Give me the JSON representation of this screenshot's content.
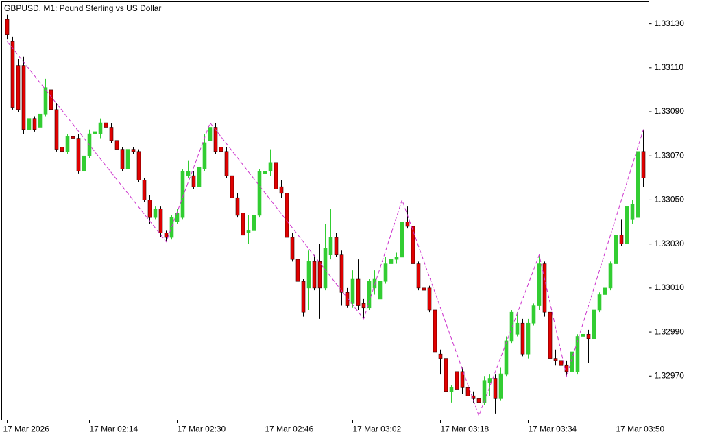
{
  "chart_data": {
    "type": "candlestick",
    "title": "GBPUSD, M1:  Pound Sterling vs US Dollar",
    "up_color": "#32cd32",
    "down_color": "#e00000",
    "xlim": [
      -1,
      117
    ],
    "xticks": [
      {
        "value": 0,
        "label": "17 Mar 2026"
      },
      {
        "value": 15,
        "label": "17 Mar 02:14"
      },
      {
        "value": 31,
        "label": "17 Mar 02:30"
      },
      {
        "value": 47,
        "label": "17 Mar 02:46"
      },
      {
        "value": 63,
        "label": "17 Mar 03:02"
      },
      {
        "value": 79,
        "label": "17 Mar 03:18"
      },
      {
        "value": 95,
        "label": "17 Mar 03:34"
      },
      {
        "value": 111,
        "label": "17 Mar 03:50"
      }
    ],
    "ylim": [
      1.3295,
      1.3314
    ],
    "yticks": [
      {
        "value": 1.3297,
        "label": "1.32970"
      },
      {
        "value": 1.3299,
        "label": "1.32990"
      },
      {
        "value": 1.3301,
        "label": "1.33010"
      },
      {
        "value": 1.3303,
        "label": "1.33030"
      },
      {
        "value": 1.3305,
        "label": "1.33050"
      },
      {
        "value": 1.3307,
        "label": "1.33070"
      },
      {
        "value": 1.3309,
        "label": "1.33090"
      },
      {
        "value": 1.3311,
        "label": "1.33110"
      },
      {
        "value": 1.3313,
        "label": "1.33130"
      }
    ],
    "open": [
      1.33132,
      1.33122,
      1.33111,
      1.33111,
      1.33082,
      1.33087,
      1.33083,
      1.33089,
      1.331,
      1.33091,
      1.33074,
      1.33072,
      1.33079,
      1.33078,
      1.33063,
      1.3307,
      1.3308,
      1.3308,
      1.33085,
      1.33083,
      1.33077,
      1.33073,
      1.33064,
      1.33073,
      1.33072,
      1.33059,
      1.3305,
      1.33042,
      1.33046,
      1.33035,
      1.33033,
      1.3304,
      1.33042,
      1.33061,
      1.33061,
      1.33056,
      1.33064,
      1.33077,
      1.33083,
      1.33074,
      1.33072,
      1.33061,
      1.33051,
      1.33044,
      1.33035,
      1.33036,
      1.33043,
      1.33062,
      1.33063,
      1.33067,
      1.33056,
      1.33053,
      1.33033,
      1.33023,
      1.33013,
      1.3301,
      1.33022,
      1.33022,
      1.3301,
      1.33025,
      1.33033,
      1.33025,
      1.33008,
      1.33003,
      1.33014,
      1.33003,
      1.33001,
      1.3301,
      1.33005,
      1.33013,
      1.33021,
      1.33023,
      1.33024,
      1.3304,
      1.33038,
      1.33021,
      1.3301,
      1.3301,
      1.33,
      1.3298,
      1.32978,
      1.32963,
      1.32972,
      1.32972,
      1.32965,
      1.32961,
      1.3296,
      1.32958,
      1.32967,
      1.32969,
      1.3296,
      1.32971,
      1.32986,
      1.32989,
      1.32994,
      1.3298,
      1.32994,
      1.33002,
      1.33021,
      1.32999,
      1.32978,
      1.32977,
      1.32975,
      1.32972,
      1.32972,
      1.32988,
      1.32989,
      1.32987,
      1.33,
      1.33007,
      1.3301,
      1.33021,
      1.33034,
      1.3303,
      1.33041,
      1.33042,
      1.33072
    ],
    "high": [
      1.33134,
      1.33124,
      1.33114,
      1.33115,
      1.33089,
      1.33088,
      1.33091,
      1.33105,
      1.33103,
      1.33094,
      1.33077,
      1.3308,
      1.33083,
      1.3308,
      1.33072,
      1.33082,
      1.33084,
      1.33087,
      1.33093,
      1.33085,
      1.33078,
      1.33074,
      1.33075,
      1.33074,
      1.33073,
      1.3306,
      1.33052,
      1.33047,
      1.33047,
      1.33036,
      1.33043,
      1.33046,
      1.33064,
      1.33068,
      1.33063,
      1.33067,
      1.3308,
      1.33085,
      1.33085,
      1.33076,
      1.33074,
      1.33063,
      1.33053,
      1.33046,
      1.33043,
      1.33045,
      1.33064,
      1.33066,
      1.33073,
      1.33068,
      1.33059,
      1.33054,
      1.33035,
      1.33025,
      1.33014,
      1.33027,
      1.33025,
      1.3303,
      1.33039,
      1.33046,
      1.33035,
      1.33027,
      1.3301,
      1.33018,
      1.33023,
      1.33005,
      1.33014,
      1.33018,
      1.33016,
      1.33024,
      1.33027,
      1.33026,
      1.3305,
      1.33047,
      1.33041,
      1.33022,
      1.33013,
      1.33011,
      1.33002,
      1.32982,
      1.3298,
      1.32966,
      1.32978,
      1.32974,
      1.32968,
      1.32963,
      1.32961,
      1.3297,
      1.32971,
      1.32971,
      1.32974,
      1.32988,
      1.33,
      1.32999,
      1.32996,
      1.32996,
      1.33003,
      1.33025,
      1.33022,
      1.33,
      1.32982,
      1.32983,
      1.32977,
      1.32982,
      1.32989,
      1.3299,
      1.32991,
      1.33002,
      1.33008,
      1.33011,
      1.33022,
      1.33036,
      1.33041,
      1.33048,
      1.3305,
      1.33074,
      1.33082
    ],
    "low": [
      1.33123,
      1.33091,
      1.3309,
      1.3308,
      1.3308,
      1.33081,
      1.33082,
      1.33088,
      1.33089,
      1.33072,
      1.33071,
      1.33071,
      1.33072,
      1.33062,
      1.33062,
      1.33069,
      1.33078,
      1.33078,
      1.33082,
      1.33076,
      1.33072,
      1.33063,
      1.33063,
      1.33071,
      1.33058,
      1.33049,
      1.33039,
      1.33041,
      1.33033,
      1.33031,
      1.33032,
      1.33039,
      1.33041,
      1.3306,
      1.33055,
      1.33055,
      1.33063,
      1.33075,
      1.33071,
      1.3307,
      1.3306,
      1.3305,
      1.33042,
      1.33025,
      1.3303,
      1.33035,
      1.33042,
      1.33061,
      1.33061,
      1.33053,
      1.33051,
      1.33032,
      1.33022,
      1.33008,
      1.32997,
      1.33,
      1.33009,
      1.32996,
      1.33009,
      1.33023,
      1.33024,
      1.33002,
      1.33001,
      1.33001,
      1.33,
      1.32996,
      1.33,
      1.33007,
      1.33003,
      1.33012,
      1.33019,
      1.33021,
      1.33023,
      1.33037,
      1.3302,
      1.33009,
      1.33007,
      1.32999,
      1.32978,
      1.32971,
      1.32958,
      1.32958,
      1.32963,
      1.32962,
      1.3296,
      1.32958,
      1.32952,
      1.32957,
      1.32961,
      1.32953,
      1.32959,
      1.3297,
      1.32985,
      1.32988,
      1.32979,
      1.32978,
      1.32993,
      1.33,
      1.32997,
      1.3297,
      1.32975,
      1.32972,
      1.3297,
      1.32971,
      1.32971,
      1.32987,
      1.32976,
      1.32986,
      1.32999,
      1.33006,
      1.33009,
      1.3302,
      1.33029,
      1.33028,
      1.33039,
      1.3304,
      1.33056
    ],
    "close": [
      1.33125,
      1.33092,
      1.33091,
      1.33082,
      1.33087,
      1.33082,
      1.33089,
      1.33101,
      1.33091,
      1.33073,
      1.33072,
      1.33079,
      1.33078,
      1.33063,
      1.3307,
      1.3308,
      1.33081,
      1.33085,
      1.33083,
      1.33077,
      1.33073,
      1.33064,
      1.33073,
      1.33072,
      1.33059,
      1.3305,
      1.33042,
      1.33046,
      1.33035,
      1.33033,
      1.33042,
      1.33044,
      1.33063,
      1.33063,
      1.33056,
      1.33065,
      1.33076,
      1.33083,
      1.33072,
      1.33072,
      1.33061,
      1.33051,
      1.33043,
      1.33034,
      1.33036,
      1.33043,
      1.33063,
      1.33063,
      1.33067,
      1.33055,
      1.33053,
      1.33033,
      1.33023,
      1.33013,
      1.32999,
      1.33022,
      1.3301,
      1.3301,
      1.33028,
      1.33033,
      1.33025,
      1.33008,
      1.33002,
      1.33014,
      1.33002,
      1.33001,
      1.33013,
      1.33014,
      1.33013,
      1.33021,
      1.33023,
      1.33024,
      1.3304,
      1.33038,
      1.33021,
      1.3301,
      1.33009,
      1.33,
      1.32981,
      1.32978,
      1.32963,
      1.32965,
      1.32964,
      1.32965,
      1.32961,
      1.3296,
      1.32958,
      1.32968,
      1.32969,
      1.3296,
      1.32971,
      1.32986,
      1.32999,
      1.32994,
      1.3298,
      1.32994,
      1.33002,
      1.33021,
      1.32999,
      1.32978,
      1.32977,
      1.32975,
      1.32972,
      1.32981,
      1.32988,
      1.32989,
      1.32987,
      1.33,
      1.33007,
      1.3301,
      1.33021,
      1.33034,
      1.3303,
      1.33047,
      1.33048,
      1.33072,
      1.3306
    ],
    "zigzag": {
      "color": "#cc33cc",
      "x": [
        0,
        29,
        37,
        65,
        72,
        86,
        97,
        102,
        116
      ],
      "values": [
        1.33122,
        1.33031,
        1.33085,
        1.32996,
        1.3305,
        1.32952,
        1.33025,
        1.3297,
        1.33082
      ]
    }
  }
}
